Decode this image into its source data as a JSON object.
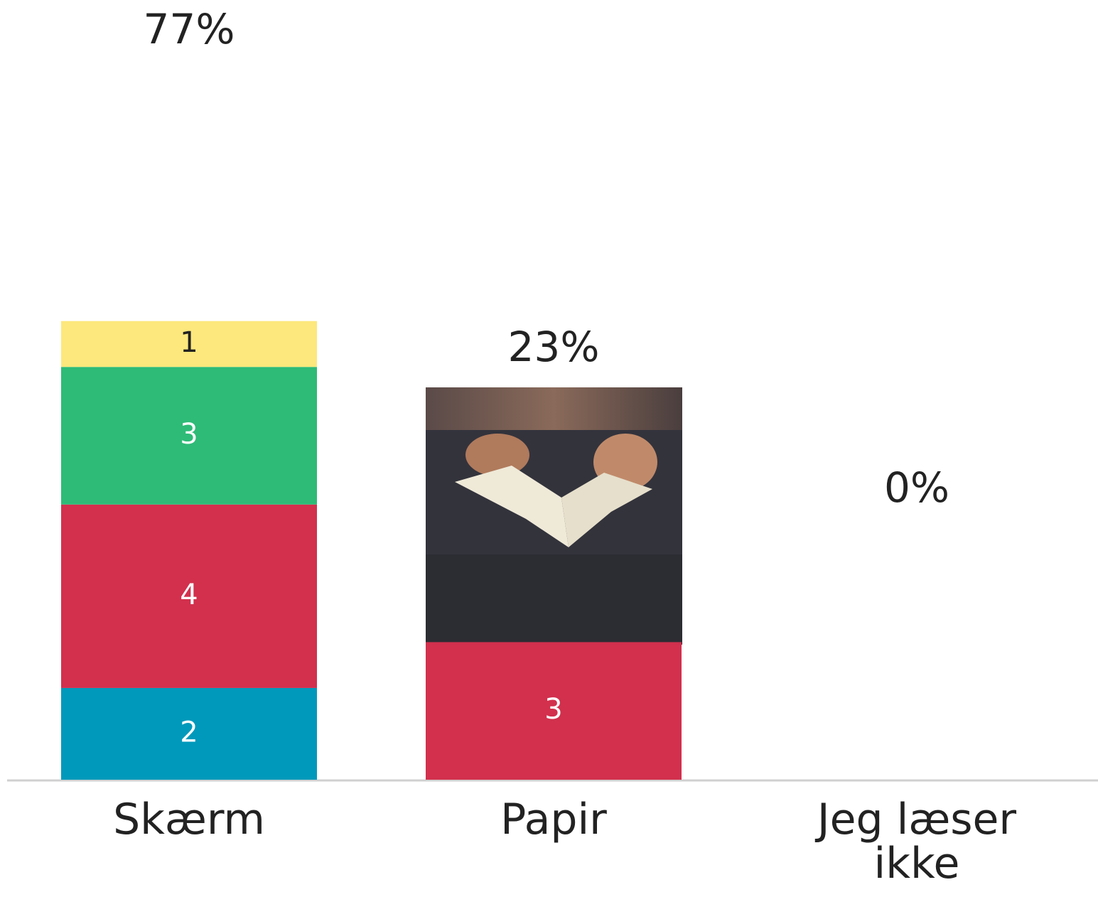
{
  "chart_data": {
    "type": "stacked-bar",
    "categories": [
      "Skærm",
      "Papir",
      "Jeg læser ikke"
    ],
    "series": [
      {
        "color": "#0099bb",
        "values": [
          2,
          null,
          null
        ]
      },
      {
        "color": "#d2304d",
        "values": [
          4,
          3,
          null
        ]
      },
      {
        "color": "#2ebb77",
        "values": [
          3,
          null,
          null
        ]
      },
      {
        "color": "#fce87c",
        "values": [
          1,
          null,
          null
        ]
      }
    ],
    "percentages": {
      "values": [
        77,
        23,
        0
      ],
      "value_labels": [
        "77%",
        "23%",
        "0%"
      ]
    },
    "ylim": [
      0,
      17
    ]
  }
}
